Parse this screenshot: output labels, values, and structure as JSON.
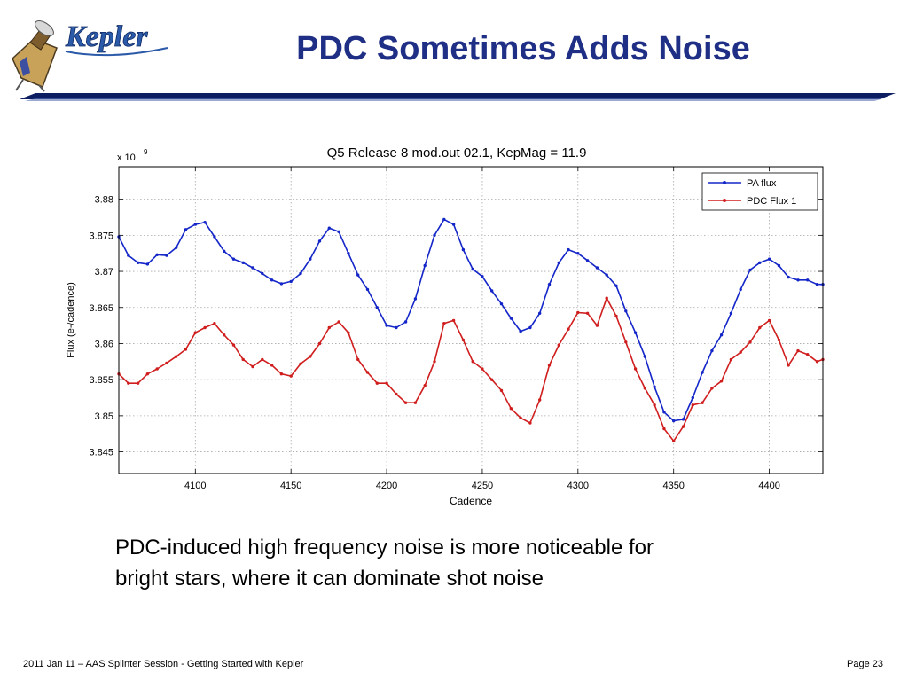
{
  "slide": {
    "title": "PDC Sometimes Adds Noise",
    "logo_text": "Kepler",
    "caption_line1": "PDC-induced high frequency noise is more noticeable for",
    "caption_line2": "bright stars, where it can dominate shot noise",
    "footer_left": "2011 Jan 11 – AAS Splinter Session - Getting Started with Kepler",
    "footer_right": "Page 23"
  },
  "colors": {
    "title": "#1f2f86",
    "rule": "#0c1d62",
    "pa_flux": "#1426c8",
    "pdc_flux": "#d01e1e",
    "grid": "#a8a8a8"
  },
  "chart_data": {
    "type": "line",
    "title": "Q5 Release 8 mod.out 02.1, KepMag = 11.9",
    "xlabel": "Cadence",
    "ylabel": "Flux (e-/cadence)",
    "y_multiplier": "x 10",
    "y_exponent": "9",
    "xlim": [
      4060,
      4428
    ],
    "ylim": [
      3.842,
      3.8845
    ],
    "xticks": [
      4100,
      4150,
      4200,
      4250,
      4300,
      4350,
      4400
    ],
    "yticks": [
      3.845,
      3.85,
      3.855,
      3.86,
      3.865,
      3.87,
      3.875,
      3.88
    ],
    "grid": true,
    "legend_position": "top-right",
    "x": [
      4060,
      4065,
      4070,
      4075,
      4080,
      4085,
      4090,
      4095,
      4100,
      4105,
      4110,
      4115,
      4120,
      4125,
      4130,
      4135,
      4140,
      4145,
      4150,
      4155,
      4160,
      4165,
      4170,
      4175,
      4180,
      4185,
      4190,
      4195,
      4200,
      4205,
      4210,
      4215,
      4220,
      4225,
      4230,
      4235,
      4240,
      4245,
      4250,
      4255,
      4260,
      4265,
      4270,
      4275,
      4280,
      4285,
      4290,
      4295,
      4300,
      4305,
      4310,
      4315,
      4320,
      4325,
      4330,
      4335,
      4340,
      4345,
      4350,
      4355,
      4360,
      4365,
      4370,
      4375,
      4380,
      4385,
      4390,
      4395,
      4400,
      4405,
      4410,
      4415,
      4420,
      4425,
      4428
    ],
    "series": [
      {
        "name": "PA flux",
        "values": [
          3.8748,
          3.8722,
          3.8712,
          3.871,
          3.8723,
          3.8722,
          3.8733,
          3.8758,
          3.8765,
          3.8768,
          3.8748,
          3.8728,
          3.8717,
          3.8712,
          3.8705,
          3.8697,
          3.8688,
          3.8683,
          3.8686,
          3.8697,
          3.8717,
          3.8742,
          3.876,
          3.8755,
          3.8725,
          3.8695,
          3.8675,
          3.865,
          3.8625,
          3.8622,
          3.863,
          3.8662,
          3.8708,
          3.875,
          3.8772,
          3.8765,
          3.873,
          3.8703,
          3.8693,
          3.8673,
          3.8655,
          3.8635,
          3.8617,
          3.8622,
          3.8642,
          3.8682,
          3.8712,
          3.873,
          3.8725,
          3.8715,
          3.8705,
          3.8695,
          3.868,
          3.8645,
          3.8615,
          3.8582,
          3.854,
          3.8505,
          3.8493,
          3.8495,
          3.8525,
          3.856,
          3.859,
          3.8612,
          3.8642,
          3.8675,
          3.8702,
          3.8712,
          3.8717,
          3.8708,
          3.8692,
          3.8688,
          3.8688,
          3.8682,
          3.8682
        ]
      },
      {
        "name": "PDC Flux 1",
        "values": [
          3.8558,
          3.8545,
          3.8545,
          3.8558,
          3.8565,
          3.8573,
          3.8582,
          3.8592,
          3.8615,
          3.8622,
          3.8628,
          3.8612,
          3.8598,
          3.8578,
          3.8568,
          3.8578,
          3.857,
          3.8558,
          3.8555,
          3.8572,
          3.8582,
          3.86,
          3.8622,
          3.863,
          3.8615,
          3.8578,
          3.856,
          3.8545,
          3.8545,
          3.853,
          3.8518,
          3.8518,
          3.8542,
          3.8575,
          3.8628,
          3.8632,
          3.8605,
          3.8575,
          3.8565,
          3.855,
          3.8535,
          3.851,
          3.8497,
          3.849,
          3.8522,
          3.857,
          3.8598,
          3.862,
          3.8643,
          3.8642,
          3.8625,
          3.8663,
          3.8638,
          3.8602,
          3.8565,
          3.8538,
          3.8515,
          3.8482,
          3.8465,
          3.8485,
          3.8515,
          3.8518,
          3.8538,
          3.8548,
          3.8578,
          3.8588,
          3.8602,
          3.8622,
          3.8632,
          3.8605,
          3.857,
          3.859,
          3.8585,
          3.8575,
          3.8578
        ]
      }
    ]
  }
}
